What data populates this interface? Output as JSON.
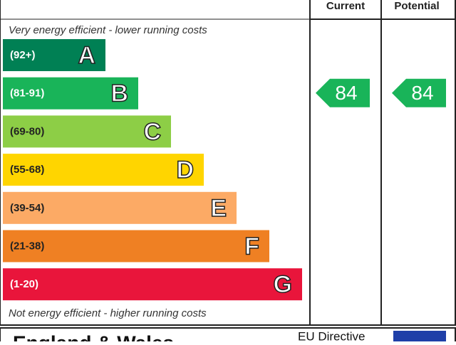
{
  "header": {
    "current": "Current",
    "potential": "Potential"
  },
  "top_note": "Very energy efficient - lower running costs",
  "bottom_note": "Not energy efficient - higher running costs",
  "bands": [
    {
      "range": "(92+)",
      "letter": "A",
      "color": "#008054"
    },
    {
      "range": "(81-91)",
      "letter": "B",
      "color": "#19b459"
    },
    {
      "range": "(69-80)",
      "letter": "C",
      "color": "#8dce46"
    },
    {
      "range": "(55-68)",
      "letter": "D",
      "color": "#ffd500"
    },
    {
      "range": "(39-54)",
      "letter": "E",
      "color": "#fcaa65"
    },
    {
      "range": "(21-38)",
      "letter": "F",
      "color": "#ef8023"
    },
    {
      "range": "(1-20)",
      "letter": "G",
      "color": "#e9153b"
    }
  ],
  "current": {
    "value": 84,
    "color": "#19b459"
  },
  "potential": {
    "value": 84,
    "color": "#19b459"
  },
  "footer": {
    "region": "England & Wales",
    "directive": "EU Directive"
  }
}
